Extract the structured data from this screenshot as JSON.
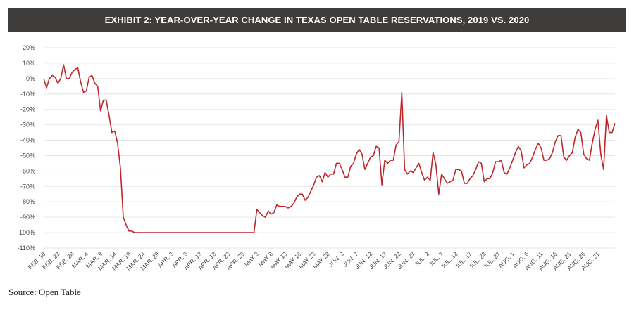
{
  "chart_data": {
    "type": "line",
    "title": "EXHIBIT 2: YEAR-OVER-YEAR CHANGE IN TEXAS OPEN TABLE RESERVATIONS, 2019 VS. 2020",
    "xlabel": "",
    "ylabel": "",
    "ylim": [
      -110,
      20
    ],
    "yticks": [
      "20%",
      "10%",
      "0%",
      "-10%",
      "-20%",
      "-30%",
      "-40%",
      "-50%",
      "-60%",
      "-70%",
      "-80%",
      "-90%",
      "-100%",
      "-110%"
    ],
    "xticks": [
      "FEB. 18",
      "FEB. 23",
      "FEB. 28",
      "MAR. 4",
      "MAR. 9",
      "MAR. 14",
      "MAR. 19",
      "MAR. 24",
      "MAR. 29",
      "APR. 3",
      "APR. 8",
      "APR. 13",
      "APR. 18",
      "APR. 23",
      "APR. 28",
      "MAY 3",
      "MAY 8",
      "MAY 13",
      "MAY 18",
      "MAY 23",
      "MAY 28",
      "JUN. 2",
      "JUN. 7",
      "JUN. 12",
      "JUN. 17",
      "JUN. 22",
      "JUN. 27",
      "JUL. 2",
      "JUL. 7",
      "JUL. 12",
      "JUL. 17",
      "JUL. 22",
      "JUL. 27",
      "AUG. 1",
      "AUG. 6",
      "AUG. 11",
      "AUG. 16",
      "AUG. 21",
      "AUG. 26",
      "AUG. 31"
    ],
    "grid": true,
    "legend": "none",
    "line_color": "#c0272d",
    "series": [
      {
        "values": [
          0,
          -6,
          0,
          2,
          1,
          -3,
          0,
          9,
          0,
          0,
          4,
          6,
          7,
          -2,
          -9,
          -8,
          1,
          2,
          -3,
          -5,
          -21,
          -14,
          -14,
          -24,
          -35,
          -34,
          -42,
          -58,
          -90,
          -95,
          -99,
          -99,
          -100,
          -100,
          -100,
          -100,
          -100,
          -100,
          -100,
          -100,
          -100,
          -100,
          -100,
          -100,
          -100,
          -100,
          -100,
          -100,
          -100,
          -100,
          -100,
          -100,
          -100,
          -100,
          -100,
          -100,
          -100,
          -100,
          -100,
          -100,
          -100,
          -100,
          -100,
          -100,
          -100,
          -100,
          -100,
          -100,
          -100,
          -100,
          -100,
          -100,
          -100,
          -100,
          -100,
          -85,
          -87,
          -89,
          -90,
          -86,
          -88,
          -87,
          -82,
          -83,
          -83,
          -83,
          -84,
          -83,
          -81,
          -77,
          -75,
          -75,
          -79,
          -77,
          -73,
          -69,
          -64,
          -63,
          -67,
          -61,
          -64,
          -62,
          -62,
          -55,
          -55,
          -59,
          -64,
          -64,
          -57,
          -55,
          -49,
          -46,
          -49,
          -59,
          -55,
          -51,
          -50,
          -44,
          -45,
          -69,
          -53,
          -55,
          -53,
          -53,
          -43,
          -41,
          -9,
          -59,
          -62,
          -60,
          -61,
          -58,
          -55,
          -61,
          -66,
          -64,
          -66,
          -48,
          -56,
          -75,
          -62,
          -65,
          -68,
          -67,
          -66,
          -59,
          -59,
          -60,
          -68,
          -68,
          -65,
          -63,
          -59,
          -54,
          -55,
          -67,
          -65,
          -65,
          -61,
          -54,
          -54,
          -53,
          -61,
          -62,
          -58,
          -53,
          -48,
          -44,
          -47,
          -58,
          -56,
          -55,
          -51,
          -46,
          -42,
          -45,
          -53,
          -53,
          -52,
          -48,
          -41,
          -37,
          -37,
          -51,
          -53,
          -50,
          -48,
          -38,
          -33,
          -35,
          -49,
          -52,
          -53,
          -42,
          -33,
          -27,
          -49,
          -59,
          -24,
          -35,
          -35,
          -29
        ]
      }
    ]
  },
  "source_note": "Source: Open Table"
}
